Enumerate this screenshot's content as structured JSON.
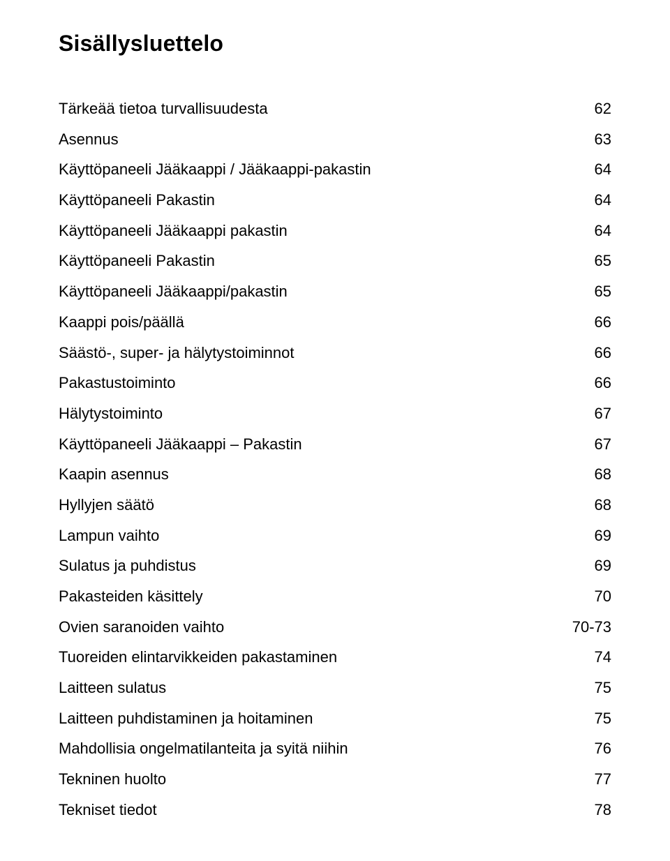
{
  "title": "Sisällysluettelo",
  "text_color": "#000000",
  "background_color": "#ffffff",
  "title_fontsize": 32,
  "row_fontsize": 22,
  "entries": [
    {
      "label": "Tärkeää tietoa turvallisuudesta",
      "page": "62"
    },
    {
      "label": "Asennus",
      "page": "63"
    },
    {
      "label": "Käyttöpaneeli Jääkaappi / Jääkaappi-pakastin",
      "page": "64"
    },
    {
      "label": "Käyttöpaneeli Pakastin",
      "page": "64"
    },
    {
      "label": "Käyttöpaneeli Jääkaappi pakastin",
      "page": "64"
    },
    {
      "label": "Käyttöpaneeli Pakastin",
      "page": "65"
    },
    {
      "label": "Käyttöpaneeli Jääkaappi/pakastin",
      "page": "65"
    },
    {
      "label": "Kaappi pois/päällä",
      "page": "66"
    },
    {
      "label": "Säästö-, super- ja hälytystoiminnot",
      "page": "66"
    },
    {
      "label": "Pakastustoiminto",
      "page": "66"
    },
    {
      "label": "Hälytystoiminto",
      "page": "67"
    },
    {
      "label": "Käyttöpaneeli Jääkaappi – Pakastin",
      "page": "67"
    },
    {
      "label": "Kaapin asennus",
      "page": "68"
    },
    {
      "label": "Hyllyjen säätö",
      "page": "68"
    },
    {
      "label": "Lampun vaihto",
      "page": "69"
    },
    {
      "label": "Sulatus ja puhdistus",
      "page": "69"
    },
    {
      "label": "Pakasteiden käsittely",
      "page": "70"
    },
    {
      "label": "Ovien saranoiden vaihto",
      "page": "70-73"
    },
    {
      "label": "Tuoreiden elintarvikkeiden pakastaminen",
      "page": "74"
    },
    {
      "label": "Laitteen sulatus",
      "page": "75"
    },
    {
      "label": "Laitteen puhdistaminen ja hoitaminen",
      "page": "75"
    },
    {
      "label": "Mahdollisia ongelmatilanteita ja syitä niihin",
      "page": "76"
    },
    {
      "label": "Tekninen huolto",
      "page": "77"
    },
    {
      "label": "Tekniset tiedot",
      "page": "78"
    }
  ]
}
